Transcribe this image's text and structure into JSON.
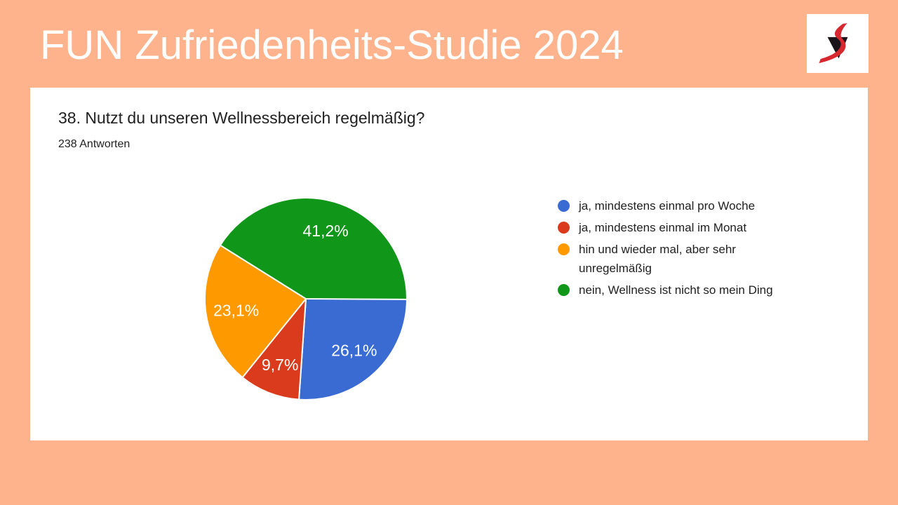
{
  "page": {
    "background_color": "#FFB38D",
    "card_color": "#FFFFFF"
  },
  "header": {
    "title": "FUN Zufriedenheits-Studie 2024",
    "title_color": "#FFFFFF",
    "logo_icon": "red-s-swoosh-logo",
    "logo_colors": {
      "swoosh": "#D7282F",
      "triangle": "#1A1418",
      "background": "#FFFFFF"
    }
  },
  "card": {
    "question": "38. Nutzt du unseren Wellnessbereich regelmäßig?",
    "responses_count": "238 Antworten"
  },
  "chart_data": {
    "type": "pie",
    "title": "38. Nutzt du unseren Wellnessbereich regelmäßig?",
    "subtitle": "238 Antworten",
    "start_angle_deg": 0,
    "direction": "clockwise",
    "legend_position": "right",
    "label_text_color": "#FFFFFF",
    "slices": [
      {
        "label": "ja, mindestens einmal pro Woche",
        "percent": 26.1,
        "display": "26,1%",
        "color": "#3A6BD2"
      },
      {
        "label": "ja, mindestens einmal im Monat",
        "percent": 9.7,
        "display": "9,7%",
        "color": "#D93B1C"
      },
      {
        "label": "hin und wieder mal, aber sehr unregelmäßig",
        "percent": 23.1,
        "display": "23,1%",
        "color": "#FF9900"
      },
      {
        "label": "nein, Wellness ist nicht so mein Ding",
        "percent": 41.2,
        "display": "41,2%",
        "color": "#109618"
      }
    ]
  }
}
